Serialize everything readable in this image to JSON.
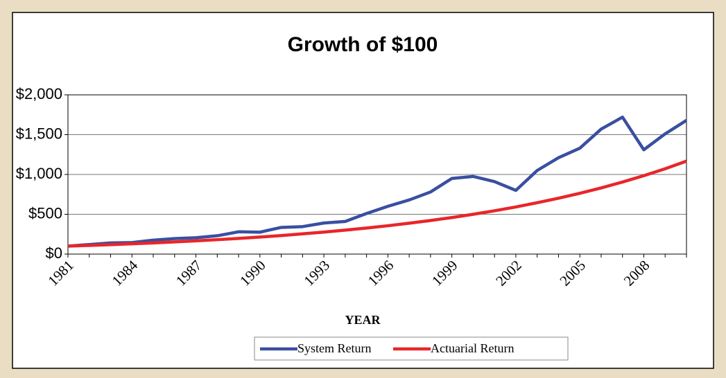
{
  "chart_data": {
    "type": "line",
    "title": "Growth of $100",
    "x_label": "YEAR",
    "categories": [
      "1981",
      null,
      null,
      "1984",
      null,
      null,
      "1987",
      null,
      null,
      "1990",
      null,
      null,
      "1993",
      null,
      null,
      "1996",
      null,
      null,
      "1999",
      null,
      null,
      "2002",
      null,
      null,
      "2005",
      null,
      null,
      "2008",
      null,
      null
    ],
    "series": [
      {
        "name": "System Return",
        "color": "#3a4fa0",
        "values": [
          100,
          120,
          140,
          145,
          175,
          195,
          205,
          230,
          280,
          275,
          335,
          345,
          390,
          410,
          510,
          600,
          680,
          780,
          950,
          975,
          910,
          800,
          1050,
          1210,
          1330,
          1570,
          1720,
          1310,
          1510,
          1680
        ]
      },
      {
        "name": "Actuarial Return",
        "color": "#e8262a",
        "values": [
          100,
          109,
          119,
          129,
          140,
          153,
          166,
          181,
          197,
          214,
          233,
          254,
          276,
          301,
          327,
          356,
          388,
          422,
          459,
          500,
          544,
          592,
          645,
          702,
          764,
          831,
          905,
          985,
          1072,
          1167
        ]
      }
    ],
    "ylim": [
      0,
      2000
    ],
    "yticks": [
      {
        "value": 0,
        "label": "$0"
      },
      {
        "value": 500,
        "label": "$500"
      },
      {
        "value": 1000,
        "label": "$1,000"
      },
      {
        "value": 1500,
        "label": "$1,500"
      },
      {
        "value": 2000,
        "label": "$2,000"
      }
    ],
    "grid": true,
    "legend": "bottom"
  }
}
